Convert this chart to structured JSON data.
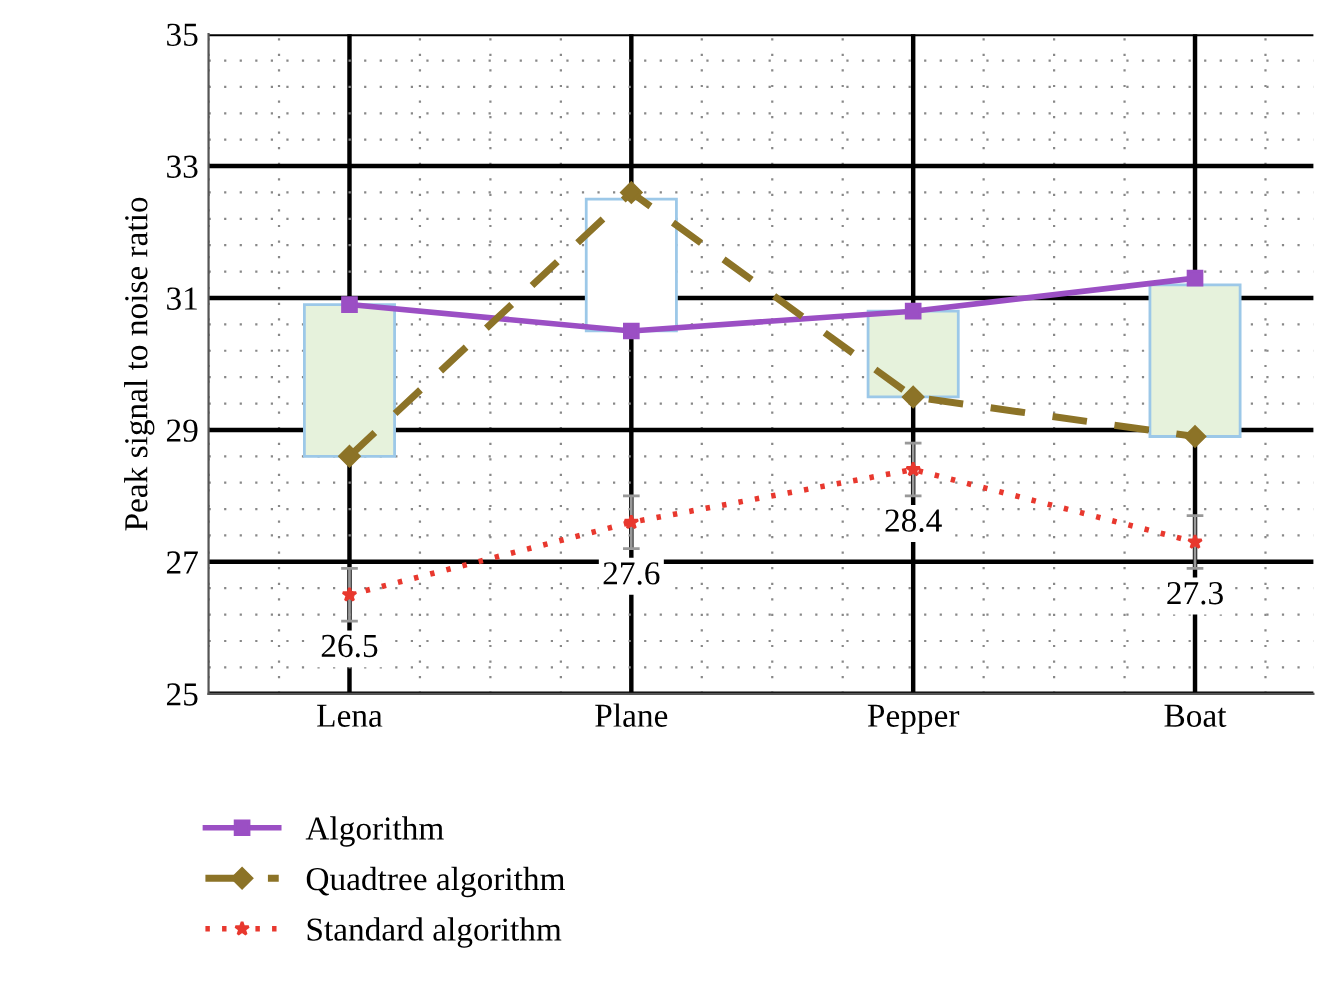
{
  "chart_data": {
    "type": "line",
    "ylabel": "Peak signal to noise ratio",
    "categories": [
      "Lena",
      "Plane",
      "Pepper",
      "Boat"
    ],
    "series": [
      {
        "type": "bar",
        "base": [
          28.6,
          30.5,
          29.5,
          28.9
        ],
        "values": [
          2.3,
          2.0,
          1.3,
          2.3
        ],
        "colors": [
          "#e6f2dc",
          "#ffffff",
          "#e6f2dc",
          "#e6f2dc"
        ]
      },
      {
        "name": "Algorithm",
        "color": "#9b4fc4",
        "values": [
          30.9,
          30.5,
          30.8,
          31.3
        ],
        "marker": "square",
        "line_style": "solid"
      },
      {
        "name": "Quadtree algorithm",
        "color": "#8c7327",
        "values": [
          28.6,
          32.6,
          29.5,
          28.9
        ],
        "marker": "diamond",
        "line_style": "dashed"
      },
      {
        "name": "Standard algorithm",
        "color": "#e8382e",
        "values": [
          26.5,
          27.6,
          28.4,
          27.3
        ],
        "marker": "star",
        "line_style": "dotted",
        "errors": [
          0.4,
          0.4,
          0.4,
          0.4
        ],
        "data_labels": true
      }
    ],
    "ylim": [
      25,
      35
    ],
    "yticks": [
      25,
      27,
      29,
      31,
      33,
      35
    ],
    "grid": true,
    "legend": "bottom"
  }
}
